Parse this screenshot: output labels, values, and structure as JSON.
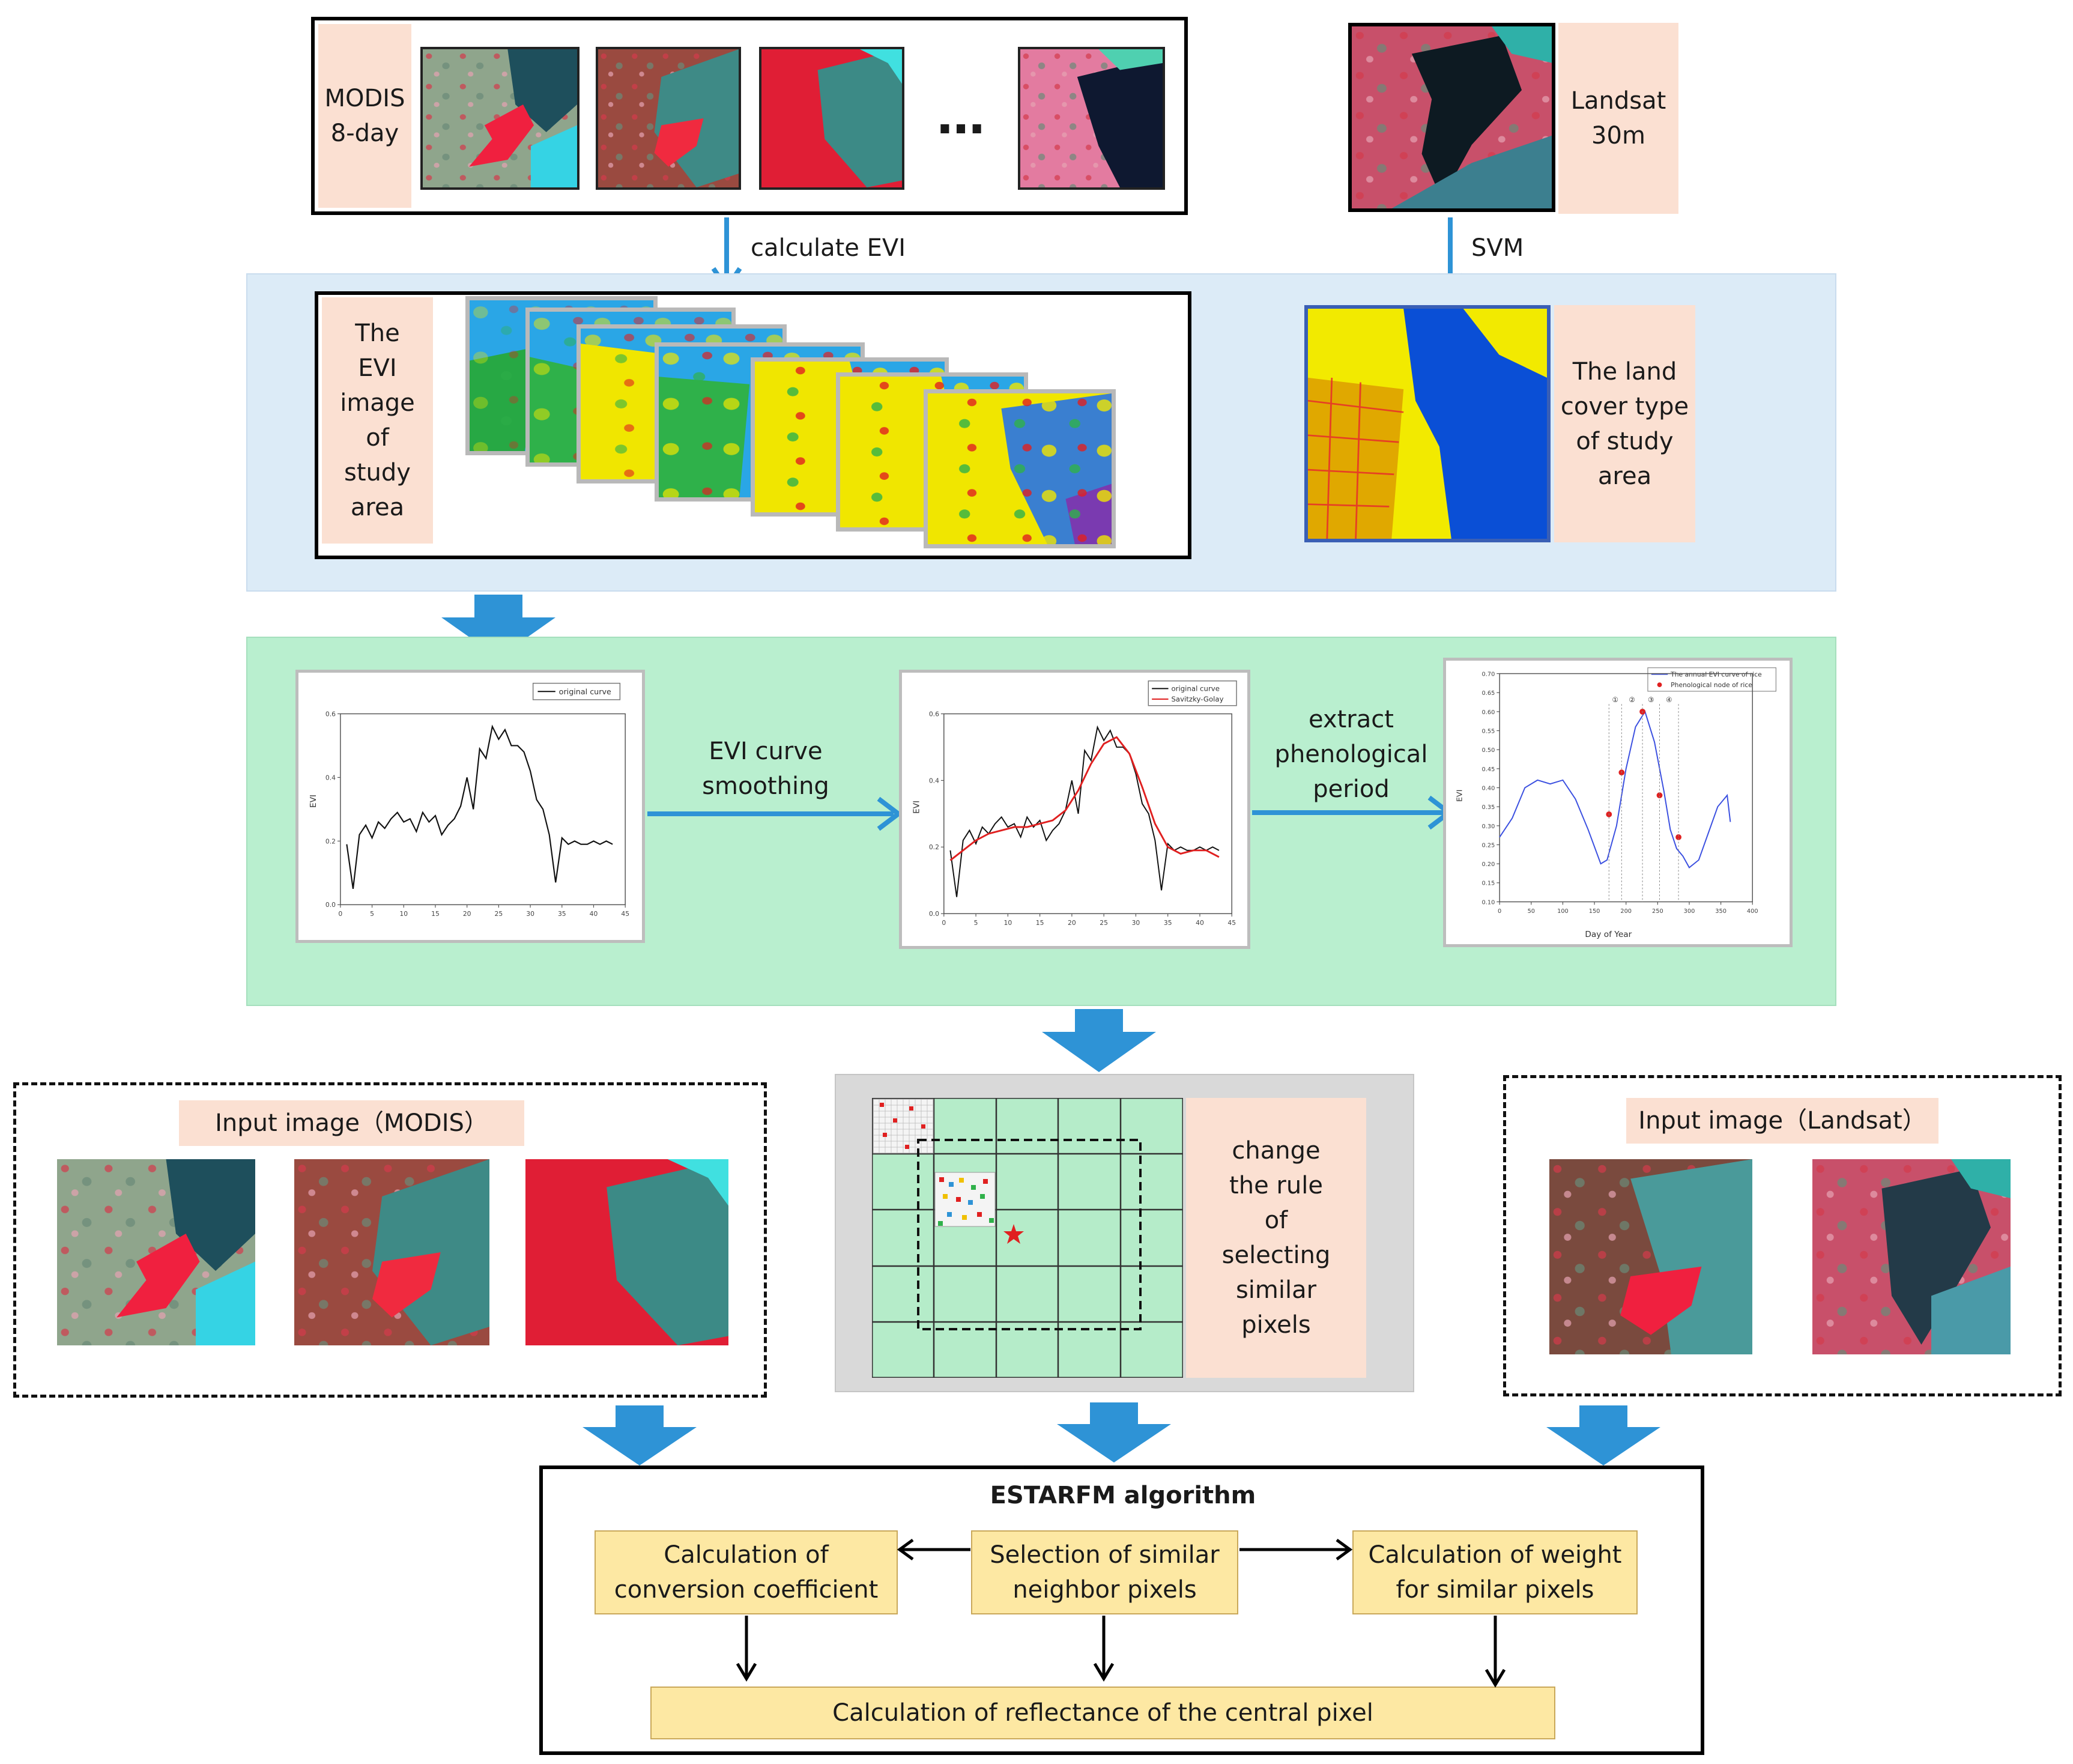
{
  "top": {
    "modis_label": "MODIS\n8-day",
    "ellipsis": "…",
    "landsat_label": "Landsat\n30m",
    "arrow_left_label": "calculate EVI",
    "arrow_right_label": "SVM"
  },
  "evi_section": {
    "evi_label": "The\nEVI\nimage\nof\nstudy\narea",
    "landcover_label": "The land\ncover type\nof study\narea"
  },
  "curve_section": {
    "smoothing_label": "EVI curve\nsmoothing",
    "extract_label": "extract\nphenological\nperiod",
    "chart1": {
      "legend": "original curve",
      "ylabel": "EVI",
      "yticks": [
        "0.0",
        "0.2",
        "0.4",
        "0.6"
      ],
      "xticks": [
        "0",
        "5",
        "10",
        "15",
        "20",
        "25",
        "30",
        "35",
        "40",
        "45"
      ]
    },
    "chart2": {
      "legend": [
        "original curve",
        "Savitzky-Golay"
      ],
      "ylabel": "EVI",
      "yticks": [
        "0.0",
        "0.2",
        "0.4",
        "0.6"
      ],
      "xticks": [
        "0",
        "5",
        "10",
        "15",
        "20",
        "25",
        "30",
        "35",
        "40",
        "45"
      ]
    },
    "chart3": {
      "legend": [
        "The annual EVI curve of rice",
        "Phenological node of rice"
      ],
      "ylabel": "EVI",
      "xlabel": "Day of Year",
      "yticks": [
        "0.10",
        "0.15",
        "0.20",
        "0.25",
        "0.30",
        "0.35",
        "0.40",
        "0.45",
        "0.50",
        "0.55",
        "0.60",
        "0.65",
        "0.70"
      ],
      "xticks": [
        "0",
        "50",
        "100",
        "150",
        "200",
        "250",
        "300",
        "350",
        "400"
      ],
      "nodes": [
        "①",
        "②",
        "③",
        "④"
      ]
    }
  },
  "chart_data": [
    {
      "type": "line",
      "title": "",
      "xlabel": "",
      "ylabel": "EVI",
      "xlim": [
        0,
        45
      ],
      "ylim": [
        0,
        0.6
      ],
      "series": [
        {
          "name": "original curve",
          "x": [
            1,
            2,
            3,
            4,
            5,
            6,
            7,
            8,
            9,
            10,
            11,
            12,
            13,
            14,
            15,
            16,
            17,
            18,
            19,
            20,
            21,
            22,
            23,
            24,
            25,
            26,
            27,
            28,
            29,
            30,
            31,
            32,
            33,
            34,
            35,
            36,
            37,
            38,
            39,
            40,
            41,
            42,
            43
          ],
          "values": [
            0.19,
            0.05,
            0.22,
            0.25,
            0.21,
            0.26,
            0.24,
            0.27,
            0.29,
            0.26,
            0.27,
            0.23,
            0.29,
            0.26,
            0.28,
            0.22,
            0.25,
            0.27,
            0.31,
            0.4,
            0.3,
            0.49,
            0.46,
            0.56,
            0.52,
            0.55,
            0.5,
            0.5,
            0.48,
            0.42,
            0.33,
            0.3,
            0.22,
            0.07,
            0.21,
            0.19,
            0.2,
            0.19,
            0.19,
            0.2,
            0.19,
            0.2,
            0.19
          ]
        }
      ]
    },
    {
      "type": "line",
      "title": "",
      "xlabel": "",
      "ylabel": "EVI",
      "xlim": [
        0,
        45
      ],
      "ylim": [
        0,
        0.6
      ],
      "series": [
        {
          "name": "original curve",
          "x": [
            1,
            2,
            3,
            4,
            5,
            6,
            7,
            8,
            9,
            10,
            11,
            12,
            13,
            14,
            15,
            16,
            17,
            18,
            19,
            20,
            21,
            22,
            23,
            24,
            25,
            26,
            27,
            28,
            29,
            30,
            31,
            32,
            33,
            34,
            35,
            36,
            37,
            38,
            39,
            40,
            41,
            42,
            43
          ],
          "values": [
            0.19,
            0.05,
            0.22,
            0.25,
            0.21,
            0.26,
            0.24,
            0.27,
            0.29,
            0.26,
            0.27,
            0.23,
            0.29,
            0.26,
            0.28,
            0.22,
            0.25,
            0.27,
            0.31,
            0.4,
            0.3,
            0.49,
            0.46,
            0.56,
            0.52,
            0.55,
            0.5,
            0.5,
            0.48,
            0.42,
            0.33,
            0.3,
            0.22,
            0.07,
            0.21,
            0.19,
            0.2,
            0.19,
            0.19,
            0.2,
            0.19,
            0.2,
            0.19
          ]
        },
        {
          "name": "Savitzky-Golay",
          "x": [
            1,
            3,
            5,
            7,
            9,
            11,
            13,
            15,
            17,
            19,
            21,
            23,
            25,
            27,
            29,
            31,
            33,
            35,
            37,
            39,
            41,
            43
          ],
          "values": [
            0.16,
            0.19,
            0.22,
            0.24,
            0.25,
            0.26,
            0.26,
            0.27,
            0.28,
            0.31,
            0.37,
            0.45,
            0.51,
            0.53,
            0.48,
            0.38,
            0.27,
            0.2,
            0.18,
            0.19,
            0.19,
            0.17
          ]
        }
      ]
    },
    {
      "type": "line",
      "title": "",
      "xlabel": "Day of Year",
      "ylabel": "EVI",
      "xlim": [
        0,
        400
      ],
      "ylim": [
        0.1,
        0.7
      ],
      "series": [
        {
          "name": "The annual EVI curve of rice",
          "x": [
            0,
            20,
            40,
            60,
            80,
            100,
            120,
            140,
            160,
            170,
            185,
            200,
            215,
            230,
            245,
            260,
            270,
            280,
            290,
            300,
            315,
            330,
            345,
            360,
            365
          ],
          "values": [
            0.27,
            0.32,
            0.4,
            0.42,
            0.41,
            0.42,
            0.37,
            0.29,
            0.2,
            0.21,
            0.3,
            0.45,
            0.56,
            0.6,
            0.52,
            0.39,
            0.29,
            0.24,
            0.22,
            0.19,
            0.21,
            0.28,
            0.35,
            0.38,
            0.31
          ]
        },
        {
          "name": "Phenological node of rice",
          "x": [
            173,
            193,
            226,
            253,
            283
          ],
          "values": [
            0.33,
            0.44,
            0.6,
            0.38,
            0.27
          ]
        }
      ]
    }
  ],
  "bottom": {
    "input_modis_label": "Input image（MODIS）",
    "input_landsat_label": "Input image（Landsat）",
    "rule_label": "change\nthe rule\nof\nselecting\nsimilar\npixels"
  },
  "algorithm": {
    "title": "ESTARFM algorithm",
    "box_left": "Calculation of\nconversion coefficient",
    "box_center": "Selection of similar\nneighbor pixels",
    "box_right": "Calculation of weight\nfor similar pixels",
    "box_bottom": "Calculation of reflectance of the central pixel"
  },
  "colors": {
    "arrow_blue": "#2e93d6",
    "panel_blue": "#dcebf7",
    "panel_green": "#b9efcf",
    "peach": "#fbe0d2",
    "yellow_box": "#fde8a3",
    "grid_green": "#b5ecc9"
  }
}
